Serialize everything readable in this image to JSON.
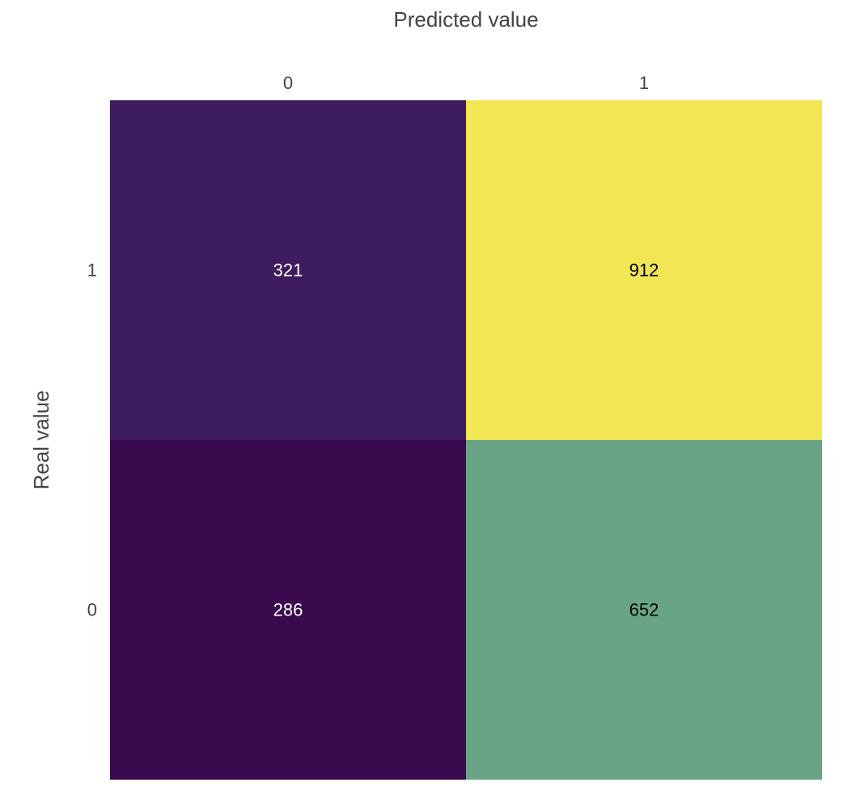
{
  "chart_data": {
    "type": "heatmap",
    "xlabel": "Predicted value",
    "ylabel": "Real value",
    "x_categories": [
      "0",
      "1"
    ],
    "y_categories": [
      "1",
      "0"
    ],
    "values": [
      [
        321,
        912
      ],
      [
        286,
        652
      ]
    ],
    "colorscale": "viridis",
    "xaxis_position": "top",
    "grid": false,
    "legend": "none",
    "cell_colors": [
      [
        "#3c1b5f",
        "#f2e655"
      ],
      [
        "#3a0a4f",
        "#69a487"
      ]
    ],
    "label_colors": [
      [
        "#ffffff",
        "#000000"
      ],
      [
        "#ffffff",
        "#000000"
      ]
    ]
  }
}
